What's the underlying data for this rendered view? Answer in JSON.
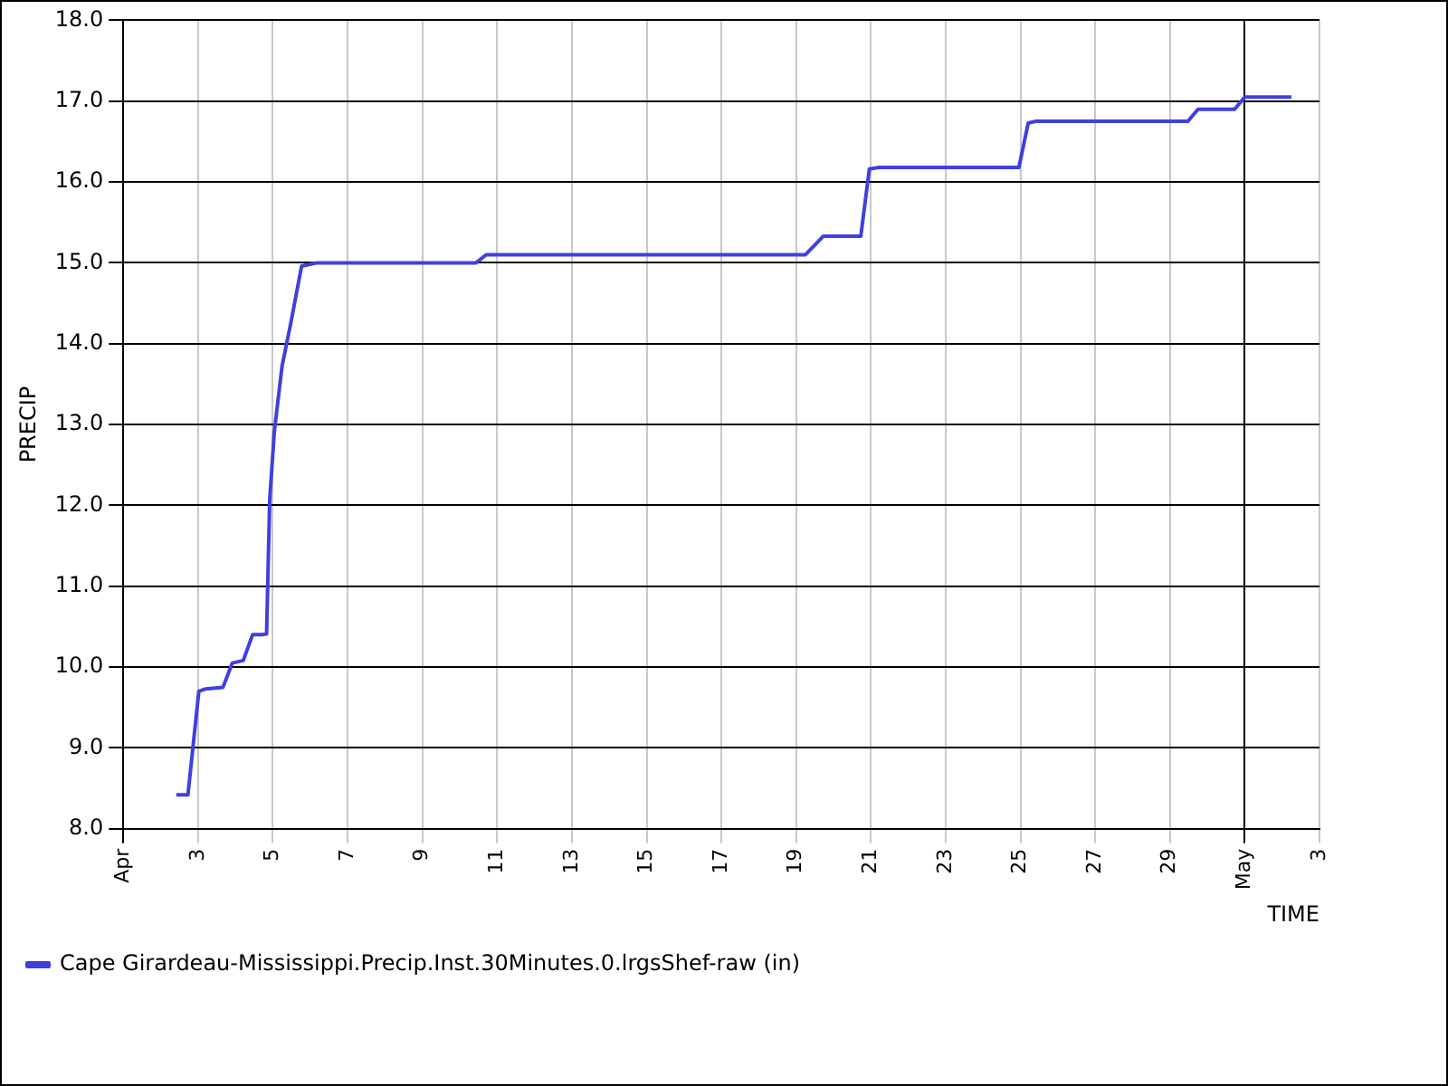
{
  "chart_data": {
    "type": "line",
    "xlabel": "TIME",
    "ylabel": "PRECIP",
    "legend": "bottom",
    "grid": true,
    "marker": "none",
    "line_style": "solid",
    "x": [
      "--04-02T10:00",
      "--04-02T17:30",
      "--04-03T00:30",
      "--04-03T05:00",
      "--04-03T16:00",
      "--04-03T22:00",
      "--04-04T05:00",
      "--04-04T11:00",
      "--04-04T17:00",
      "--04-04T20:00",
      "--04-04T22:00",
      "--04-05T01:00",
      "--04-05T06:00",
      "--04-05T11:30",
      "--04-05T18:30",
      "--04-06T04:30",
      "--04-10T10:30",
      "--04-10T17:00",
      "--04-19T06:00",
      "--04-19T17:30",
      "--04-20T17:30",
      "--04-20T23:00",
      "--04-21T05:00",
      "--04-24T23:00",
      "--04-25T05:00",
      "--04-25T10:00",
      "--04-29T11:30",
      "--04-29T18:00",
      "--04-30T17:30",
      "--05-01T00:00",
      "--05-02T06:00"
    ],
    "series": [
      {
        "name": "Cape Girardeau-Mississippi.Precip.Inst.30Minutes.0.lrgsShef-raw (in)",
        "color": "#4040e0",
        "values": [
          8.42,
          8.42,
          9.7,
          9.73,
          9.75,
          10.05,
          10.08,
          10.4,
          10.4,
          10.41,
          12.07,
          12.92,
          13.73,
          14.25,
          14.96,
          15.0,
          15.0,
          15.1,
          15.1,
          15.33,
          15.33,
          16.16,
          16.18,
          16.18,
          16.73,
          16.75,
          16.75,
          16.9,
          16.9,
          17.05,
          17.05
        ]
      }
    ],
    "xlim": [
      "--04-01",
      "--05-03"
    ],
    "xticks": [
      {
        "value": "--04-01",
        "label": "Apr"
      },
      {
        "value": "--04-03",
        "label": "3"
      },
      {
        "value": "--04-05",
        "label": "5"
      },
      {
        "value": "--04-07",
        "label": "7"
      },
      {
        "value": "--04-09",
        "label": "9"
      },
      {
        "value": "--04-11",
        "label": "11"
      },
      {
        "value": "--04-13",
        "label": "13"
      },
      {
        "value": "--04-15",
        "label": "15"
      },
      {
        "value": "--04-17",
        "label": "17"
      },
      {
        "value": "--04-19",
        "label": "19"
      },
      {
        "value": "--04-21",
        "label": "21"
      },
      {
        "value": "--04-23",
        "label": "23"
      },
      {
        "value": "--04-25",
        "label": "25"
      },
      {
        "value": "--04-27",
        "label": "27"
      },
      {
        "value": "--04-29",
        "label": "29"
      },
      {
        "value": "--05-01",
        "label": "May"
      },
      {
        "value": "--05-03",
        "label": "3"
      }
    ],
    "ylim": [
      8,
      18
    ],
    "yticks": [
      {
        "value": 8,
        "label": "8.0"
      },
      {
        "value": 9,
        "label": "9.0"
      },
      {
        "value": 10,
        "label": "10.0"
      },
      {
        "value": 11,
        "label": "11.0"
      },
      {
        "value": 12,
        "label": "12.0"
      },
      {
        "value": 13,
        "label": "13.0"
      },
      {
        "value": 14,
        "label": "14.0"
      },
      {
        "value": 15,
        "label": "15.0"
      },
      {
        "value": 16,
        "label": "16.0"
      },
      {
        "value": 17,
        "label": "17.0"
      },
      {
        "value": 18,
        "label": "18.0"
      }
    ]
  }
}
